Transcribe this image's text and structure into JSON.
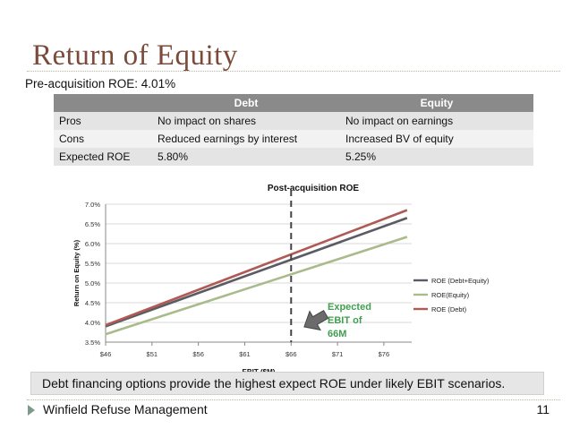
{
  "slide": {
    "title": "Return of Equity",
    "pre_acquisition": "Pre-acquisition ROE: 4.01%",
    "conclusion": "Debt financing options provide the highest expect ROE under likely EBIT scenarios.",
    "footer": "Winfield Refuse Management",
    "page_number": "11"
  },
  "table": {
    "headers": [
      "",
      "Debt",
      "Equity"
    ],
    "rows": [
      [
        "Pros",
        "No impact on shares",
        "No impact on earnings"
      ],
      [
        "Cons",
        "Reduced earnings by interest",
        "Increased BV of equity"
      ],
      [
        "Expected ROE",
        "5.80%",
        "5.25%"
      ]
    ]
  },
  "chart_data": {
    "type": "line",
    "title": "Post-acquisition ROE",
    "xlabel": "EBIT ($M)",
    "ylabel": "Return on Equity (%)",
    "x_ticks": [
      "$46",
      "$51",
      "$56",
      "$61",
      "$66",
      "$71",
      "$76"
    ],
    "xlim": [
      46,
      79
    ],
    "ylim": [
      3.5,
      7.0
    ],
    "y_ticks": [
      "3.5%",
      "4.0%",
      "4.5%",
      "5.0%",
      "5.5%",
      "6.0%",
      "6.5%",
      "7.0%"
    ],
    "legend_position": "right",
    "series": [
      {
        "name": "ROE (Debt+Equity)",
        "color": "#5b5b63",
        "x": [
          46,
          78.5
        ],
        "y": [
          3.9,
          6.65
        ]
      },
      {
        "name": "ROE(Equity)",
        "color": "#a9bb8a",
        "x": [
          46,
          78.5
        ],
        "y": [
          3.7,
          6.17
        ]
      },
      {
        "name": "ROE (Debt)",
        "color": "#b05a55",
        "x": [
          46,
          78.5
        ],
        "y": [
          3.93,
          6.85
        ]
      }
    ],
    "reference_line": {
      "x": 66
    },
    "annotation": {
      "text_lines": [
        "Expected",
        "EBIT of",
        "66M"
      ],
      "color": "#3f9f4f"
    }
  }
}
